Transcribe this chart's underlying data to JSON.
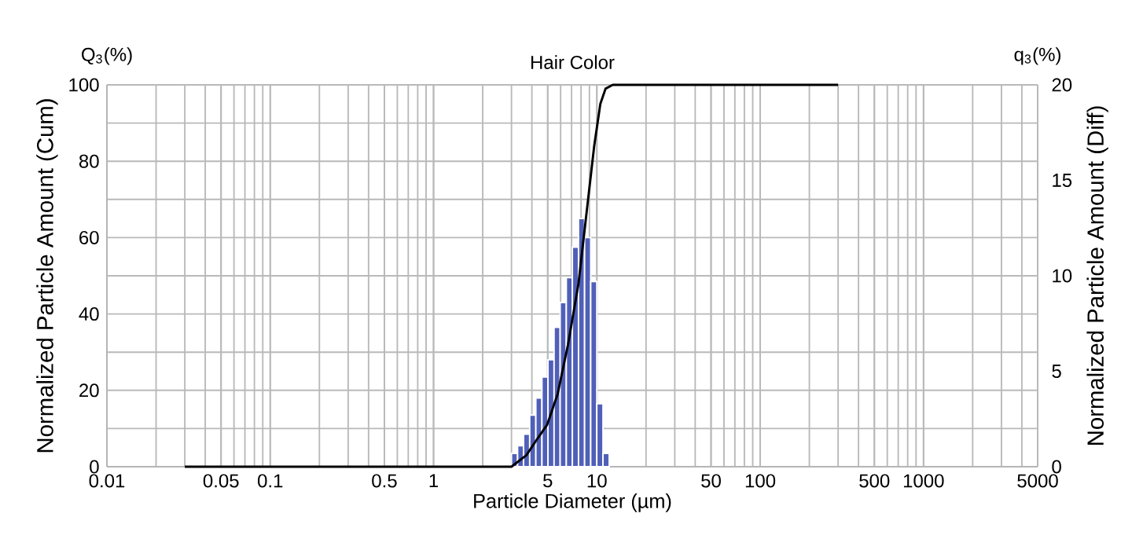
{
  "chart_data": {
    "type": "histogram",
    "title": "Hair Color",
    "xlabel": "Particle Diameter (µm)",
    "ylabel": "Normalized Particle Amount (Cum)",
    "y2label": "Normalized Particle Amount (Diff)",
    "annotations": [
      "Q$_{3}$(%)",
      "q$_{3}$(%)"
    ],
    "log": "x",
    "grid": true,
    "xlim": [
      0.01,
      5000
    ],
    "xticks": [
      0.01,
      0.05,
      0.1,
      0.5,
      1,
      5,
      10,
      50,
      100,
      500,
      1000,
      5000
    ],
    "ylim": [
      0,
      100
    ],
    "yticks": [
      0,
      {
        "value": 10,
        "label": null
      },
      20,
      {
        "value": 30,
        "label": null
      },
      40,
      {
        "value": 50,
        "label": null
      },
      60,
      {
        "value": 70,
        "label": null
      },
      80,
      {
        "value": 90,
        "label": null
      },
      100
    ],
    "y2lim": [
      0,
      20
    ],
    "y2ticks": [
      0,
      5,
      10,
      15,
      20
    ],
    "series": [
      {
        "axis": "y2",
        "color": "#5060b8",
        "bins": [
          3.0,
          3.27,
          3.56,
          3.88,
          4.23,
          4.61,
          5.02,
          5.47,
          5.96,
          6.5,
          7.08,
          7.72,
          8.41,
          9.17,
          9.99,
          10.9,
          11.9
        ],
        "values": [
          0.7,
          1.1,
          1.7,
          2.7,
          3.6,
          4.7,
          5.6,
          7.3,
          8.6,
          9.9,
          11.5,
          13.0,
          12.0,
          9.7,
          3.3,
          0.7
        ]
      },
      {
        "type": "line",
        "color": "#000000",
        "x": [
          0.03,
          3.0,
          3.7,
          4.27,
          4.96,
          5.75,
          6.66,
          7.72,
          8.62,
          9.63,
          10.5,
          11.3,
          12.5,
          300
        ],
        "values": [
          0,
          0,
          3,
          7,
          11,
          19,
          32,
          48,
          66,
          84,
          95,
          99,
          100,
          100
        ]
      }
    ]
  }
}
